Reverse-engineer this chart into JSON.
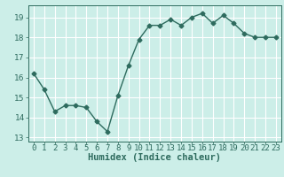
{
  "x": [
    0,
    1,
    2,
    3,
    4,
    5,
    6,
    7,
    8,
    9,
    10,
    11,
    12,
    13,
    14,
    15,
    16,
    17,
    18,
    19,
    20,
    21,
    22,
    23
  ],
  "y": [
    16.2,
    15.4,
    14.3,
    14.6,
    14.6,
    14.5,
    13.8,
    13.3,
    15.1,
    16.6,
    17.9,
    18.6,
    18.6,
    18.9,
    18.6,
    19.0,
    19.2,
    18.7,
    19.1,
    18.7,
    18.2,
    18.0,
    18.0,
    18.0
  ],
  "line_color": "#2e6b5e",
  "marker": "D",
  "markersize": 2.5,
  "linewidth": 1.0,
  "xlabel": "Humidex (Indice chaleur)",
  "xlim": [
    -0.5,
    23.5
  ],
  "ylim": [
    12.8,
    19.6
  ],
  "yticks": [
    13,
    14,
    15,
    16,
    17,
    18,
    19
  ],
  "xticks": [
    0,
    1,
    2,
    3,
    4,
    5,
    6,
    7,
    8,
    9,
    10,
    11,
    12,
    13,
    14,
    15,
    16,
    17,
    18,
    19,
    20,
    21,
    22,
    23
  ],
  "bg_color": "#cceee8",
  "grid_color": "#ffffff",
  "tick_color": "#2e6b5e",
  "label_color": "#2e6b5e",
  "xlabel_fontsize": 7.5,
  "tick_fontsize": 6.5
}
